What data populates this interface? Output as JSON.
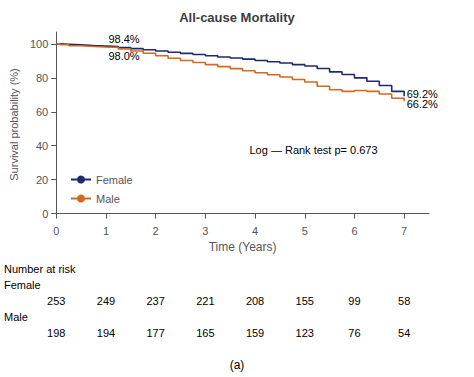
{
  "chart_data": {
    "type": "step",
    "title": "All-cause Mortality",
    "subtitle": "(a)",
    "xlabel": "Time (Years)",
    "ylabel": "Survival probability (%)",
    "xlim": [
      0,
      7.5
    ],
    "xticks": [
      0,
      1,
      2,
      3,
      4,
      5,
      6,
      7
    ],
    "ylim": [
      -2,
      107
    ],
    "yticks": [
      0,
      20,
      40,
      60,
      80,
      100
    ],
    "grid": false,
    "legend": "lower left",
    "series": [
      {
        "name": "Female",
        "color": "#1f2a6e",
        "x": [
          0,
          0.08,
          0.25,
          0.5,
          0.75,
          1.0,
          1.25,
          1.5,
          1.75,
          2.0,
          2.25,
          2.5,
          2.75,
          3.0,
          3.25,
          3.5,
          3.75,
          4.0,
          4.25,
          4.5,
          4.75,
          5.0,
          5.25,
          5.5,
          5.75,
          6.0,
          6.25,
          6.5,
          6.75,
          7.0
        ],
        "values": [
          100,
          99.8,
          99.4,
          99.0,
          98.7,
          98.4,
          97.8,
          97.2,
          96.5,
          95.8,
          95.1,
          94.4,
          93.7,
          93.0,
          92.3,
          91.7,
          91.0,
          90.2,
          89.5,
          88.7,
          87.8,
          87.0,
          85.5,
          83.5,
          82.0,
          80.0,
          78.0,
          75.5,
          72.0,
          69.2
        ]
      },
      {
        "name": "Male",
        "color": "#d2691e",
        "x": [
          0,
          0.08,
          0.25,
          0.5,
          0.75,
          1.0,
          1.25,
          1.5,
          1.75,
          2.0,
          2.25,
          2.5,
          2.75,
          3.0,
          3.25,
          3.5,
          3.75,
          4.0,
          4.25,
          4.5,
          4.75,
          5.0,
          5.25,
          5.5,
          5.75,
          6.0,
          6.25,
          6.5,
          6.75,
          7.0
        ],
        "values": [
          100,
          99.5,
          98.9,
          98.5,
          98.2,
          98.0,
          97.0,
          95.8,
          94.5,
          93.0,
          91.5,
          90.2,
          89.0,
          87.8,
          86.6,
          85.4,
          84.2,
          83.0,
          81.8,
          80.5,
          79.0,
          77.5,
          75.0,
          73.0,
          72.0,
          72.5,
          72.0,
          70.5,
          68.0,
          66.2
        ]
      }
    ],
    "annotations": [
      {
        "text": "98.4%",
        "x": 1.05,
        "y": 99.5
      },
      {
        "text": "98.0%",
        "x": 1.05,
        "y": 96.2
      },
      {
        "text": "69.2%",
        "x": 7.05,
        "y": 70.5
      },
      {
        "text": "66.2%",
        "x": 7.05,
        "y": 64.5
      },
      {
        "text": "Log — Rank test p= 0.673"
      }
    ],
    "risk_table": {
      "header": "Number at risk",
      "times": [
        0,
        1,
        2,
        3,
        4,
        5,
        6,
        7
      ],
      "rows": [
        {
          "name": "Female",
          "values": [
            253,
            249,
            237,
            221,
            208,
            155,
            99,
            58
          ]
        },
        {
          "name": "Male",
          "values": [
            198,
            194,
            177,
            165,
            159,
            123,
            76,
            54
          ]
        }
      ]
    }
  }
}
